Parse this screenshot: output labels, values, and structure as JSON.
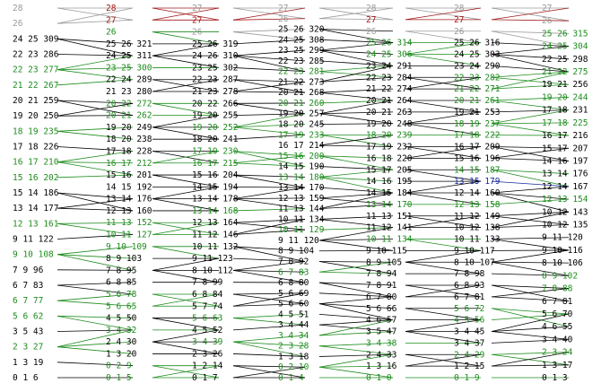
{
  "colors": {
    "black": "#000000",
    "green": "#1e8c1e",
    "red": "#a01818",
    "gray": "#9a9a9a",
    "blue": "#1a2a9a"
  },
  "columns": [
    {
      "labels": [
        {
          "t": "28",
          "c": "gray"
        },
        {
          "t": "26",
          "c": "gray"
        },
        {
          "t": "24 25 309",
          "c": "black"
        },
        {
          "t": "22 23 286",
          "c": "black"
        },
        {
          "t": "22 23 277",
          "c": "green"
        },
        {
          "t": "21 22 267",
          "c": "green"
        },
        {
          "t": "20 21 259",
          "c": "black"
        },
        {
          "t": "19 20 250",
          "c": "black"
        },
        {
          "t": "18 19 235",
          "c": "green"
        },
        {
          "t": "17 18 226",
          "c": "black"
        },
        {
          "t": "16 17 210",
          "c": "green"
        },
        {
          "t": "15 16 202",
          "c": "green"
        },
        {
          "t": "15 14 186",
          "c": "black"
        },
        {
          "t": "13 14 177",
          "c": "black"
        },
        {
          "t": "12 13 161",
          "c": "green"
        },
        {
          "t": "9 11 122",
          "c": "black"
        },
        {
          "t": "9 10 108",
          "c": "green"
        },
        {
          "t": "7 9 96",
          "c": "black"
        },
        {
          "t": "6 7 83",
          "c": "black"
        },
        {
          "t": "6 7 77",
          "c": "green"
        },
        {
          "t": "5 6 62",
          "c": "green"
        },
        {
          "t": "3 5 43",
          "c": "black"
        },
        {
          "t": "2 3 27",
          "c": "green"
        },
        {
          "t": "1 3 19",
          "c": "black"
        },
        {
          "t": "0 1 6",
          "c": "black"
        }
      ]
    },
    {
      "labels": [
        {
          "t": "28",
          "c": "red"
        },
        {
          "t": "27",
          "c": "red"
        },
        {
          "t": "26",
          "c": "green"
        },
        {
          "t": "25 26 321",
          "c": "black"
        },
        {
          "t": "24 25 311",
          "c": "black"
        },
        {
          "t": "23 25 300",
          "c": "green"
        },
        {
          "t": "22 24 289",
          "c": "black"
        },
        {
          "t": "21 23 280",
          "c": "black"
        },
        {
          "t": "20 22 272",
          "c": "green"
        },
        {
          "t": "20 21 262",
          "c": "green"
        },
        {
          "t": "19 20 249",
          "c": "black"
        },
        {
          "t": "18 20 238",
          "c": "black"
        },
        {
          "t": "17 18 228",
          "c": "black"
        },
        {
          "t": "16 17 212",
          "c": "green"
        },
        {
          "t": "15 16 201",
          "c": "black"
        },
        {
          "t": "14 15 192",
          "c": "black"
        },
        {
          "t": "13 14 176",
          "c": "black"
        },
        {
          "t": "12 13 160",
          "c": "black"
        },
        {
          "t": "11 13 152",
          "c": "green"
        },
        {
          "t": "10 11 127",
          "c": "green"
        },
        {
          "t": "9 10 109",
          "c": "green"
        },
        {
          "t": "8 9 103",
          "c": "black"
        },
        {
          "t": "7 8 95",
          "c": "black"
        },
        {
          "t": "6 8 85",
          "c": "black"
        },
        {
          "t": "5 6 78",
          "c": "green"
        },
        {
          "t": "5 6 65",
          "c": "green"
        },
        {
          "t": "4 5 50",
          "c": "black"
        },
        {
          "t": "3 4 32",
          "c": "green"
        },
        {
          "t": "2 4 30",
          "c": "black"
        },
        {
          "t": "1 3 20",
          "c": "black"
        },
        {
          "t": "0 2 9",
          "c": "green"
        },
        {
          "t": "0 1 5",
          "c": "green"
        }
      ]
    },
    {
      "labels": [
        {
          "t": "27",
          "c": "gray"
        },
        {
          "t": "27",
          "c": "red"
        },
        {
          "t": "26",
          "c": "gray"
        },
        {
          "t": "25 26 319",
          "c": "black"
        },
        {
          "t": "24 26 310",
          "c": "black"
        },
        {
          "t": "23 25 302",
          "c": "black"
        },
        {
          "t": "22 23 287",
          "c": "black"
        },
        {
          "t": "21 23 278",
          "c": "black"
        },
        {
          "t": "20 22 266",
          "c": "black"
        },
        {
          "t": "19 20 255",
          "c": "black"
        },
        {
          "t": "19 20 252",
          "c": "green"
        },
        {
          "t": "18 20 241",
          "c": "black"
        },
        {
          "t": "17 19 230",
          "c": "green"
        },
        {
          "t": "16 17 215",
          "c": "green"
        },
        {
          "t": "15 16 204",
          "c": "black"
        },
        {
          "t": "14 15 194",
          "c": "black"
        },
        {
          "t": "13 14 178",
          "c": "black"
        },
        {
          "t": "13 14 168",
          "c": "green"
        },
        {
          "t": "12 13 164",
          "c": "black"
        },
        {
          "t": "11 12 146",
          "c": "black"
        },
        {
          "t": "10 11 132",
          "c": "black"
        },
        {
          "t": "9 11 123",
          "c": "black"
        },
        {
          "t": "8 10 112",
          "c": "black"
        },
        {
          "t": "7 8 99",
          "c": "black"
        },
        {
          "t": "6 8 84",
          "c": "black"
        },
        {
          "t": "5 7 74",
          "c": "black"
        },
        {
          "t": "5 6 63",
          "c": "green"
        },
        {
          "t": "4 5 52",
          "c": "black"
        },
        {
          "t": "3 4 39",
          "c": "green"
        },
        {
          "t": "2 3 26",
          "c": "black"
        },
        {
          "t": "1 2 14",
          "c": "black"
        },
        {
          "t": "0 1 7",
          "c": "black"
        }
      ]
    },
    {
      "labels": [
        {
          "t": "27",
          "c": "gray"
        },
        {
          "t": "26",
          "c": "gray"
        },
        {
          "t": "25 26 320",
          "c": "black"
        },
        {
          "t": "24 25 308",
          "c": "black"
        },
        {
          "t": "23 25 299",
          "c": "black"
        },
        {
          "t": "22 23 285",
          "c": "black"
        },
        {
          "t": "22 23 281",
          "c": "green"
        },
        {
          "t": "21 22 273",
          "c": "black"
        },
        {
          "t": "20 21 268",
          "c": "black"
        },
        {
          "t": "20 21 260",
          "c": "green"
        },
        {
          "t": "19 20 257",
          "c": "black"
        },
        {
          "t": "18 20 245",
          "c": "black"
        },
        {
          "t": "17 19 233",
          "c": "green"
        },
        {
          "t": "16 17 214",
          "c": "black"
        },
        {
          "t": "15 16 200",
          "c": "green"
        },
        {
          "t": "14 15 190",
          "c": "black"
        },
        {
          "t": "13 14 180",
          "c": "green"
        },
        {
          "t": "13 14 170",
          "c": "black"
        },
        {
          "t": "12 13 159",
          "c": "black"
        },
        {
          "t": "11 13 144",
          "c": "black"
        },
        {
          "t": "10 11 134",
          "c": "black"
        },
        {
          "t": "10 11 129",
          "c": "green"
        },
        {
          "t": "9 11 120",
          "c": "black"
        },
        {
          "t": "8 9 104",
          "c": "black"
        },
        {
          "t": "7 8 92",
          "c": "black"
        },
        {
          "t": "6 7 83",
          "c": "green"
        },
        {
          "t": "6 8 80",
          "c": "black"
        },
        {
          "t": "5 6 69",
          "c": "black"
        },
        {
          "t": "5 6 60",
          "c": "black"
        },
        {
          "t": "4 5 51",
          "c": "black"
        },
        {
          "t": "3 4 44",
          "c": "black"
        },
        {
          "t": "3 4 34",
          "c": "green"
        },
        {
          "t": "2 3 28",
          "c": "green"
        },
        {
          "t": "1 3 18",
          "c": "black"
        },
        {
          "t": "0 2 10",
          "c": "green"
        },
        {
          "t": "0 1 4",
          "c": "green"
        }
      ]
    },
    {
      "labels": [
        {
          "t": "28",
          "c": "gray"
        },
        {
          "t": "27",
          "c": "red"
        },
        {
          "t": "26",
          "c": "gray"
        },
        {
          "t": "25 26 314",
          "c": "green"
        },
        {
          "t": "24 25 306",
          "c": "green"
        },
        {
          "t": "23 24 291",
          "c": "black"
        },
        {
          "t": "22 23 284",
          "c": "black"
        },
        {
          "t": "21 22 274",
          "c": "black"
        },
        {
          "t": "20 21 264",
          "c": "black"
        },
        {
          "t": "20 21 263",
          "c": "black"
        },
        {
          "t": "19 20 248",
          "c": "black"
        },
        {
          "t": "18 20 239",
          "c": "green"
        },
        {
          "t": "17 19 232",
          "c": "black"
        },
        {
          "t": "16 18 220",
          "c": "black"
        },
        {
          "t": "15 17 205",
          "c": "black"
        },
        {
          "t": "14 16 195",
          "c": "black"
        },
        {
          "t": "14 15 184",
          "c": "black"
        },
        {
          "t": "13 14 170",
          "c": "green"
        },
        {
          "t": "11 13 151",
          "c": "black"
        },
        {
          "t": "11 12 141",
          "c": "black"
        },
        {
          "t": "10 11 134",
          "c": "green"
        },
        {
          "t": "9 10 115",
          "c": "black"
        },
        {
          "t": "8 9 105",
          "c": "black"
        },
        {
          "t": "7 8 94",
          "c": "black"
        },
        {
          "t": "7 8 91",
          "c": "black"
        },
        {
          "t": "6 7 80",
          "c": "black"
        },
        {
          "t": "5 6 66",
          "c": "black"
        },
        {
          "t": "4 6 57",
          "c": "black"
        },
        {
          "t": "3 5 47",
          "c": "black"
        },
        {
          "t": "3 4 38",
          "c": "green"
        },
        {
          "t": "2 4 33",
          "c": "black"
        },
        {
          "t": "1 3 16",
          "c": "black"
        },
        {
          "t": "0 1 0",
          "c": "green"
        }
      ]
    },
    {
      "labels": [
        {
          "t": "28",
          "c": "gray"
        },
        {
          "t": "27",
          "c": "red"
        },
        {
          "t": "26",
          "c": "gray"
        },
        {
          "t": "25 26 316",
          "c": "black"
        },
        {
          "t": "24 25 303",
          "c": "black"
        },
        {
          "t": "23 24 290",
          "c": "black"
        },
        {
          "t": "22 23 282",
          "c": "green"
        },
        {
          "t": "21 22 271",
          "c": "green"
        },
        {
          "t": "20 21 261",
          "c": "green"
        },
        {
          "t": "19 21 253",
          "c": "black"
        },
        {
          "t": "18 19 237",
          "c": "green"
        },
        {
          "t": "17 18 222",
          "c": "green"
        },
        {
          "t": "16 17 209",
          "c": "black"
        },
        {
          "t": "15 16 196",
          "c": "black"
        },
        {
          "t": "14 15 187",
          "c": "green"
        },
        {
          "t": "13 15 179",
          "c": "blue"
        },
        {
          "t": "12 14 160",
          "c": "black"
        },
        {
          "t": "12 13 158",
          "c": "green"
        },
        {
          "t": "11 12 149",
          "c": "black"
        },
        {
          "t": "10 12 138",
          "c": "black"
        },
        {
          "t": "10 11 133",
          "c": "black"
        },
        {
          "t": "9 10 117",
          "c": "black"
        },
        {
          "t": "8 10 107",
          "c": "black"
        },
        {
          "t": "7 8 98",
          "c": "black"
        },
        {
          "t": "6 8 93",
          "c": "black"
        },
        {
          "t": "6 7 81",
          "c": "black"
        },
        {
          "t": "5 6 72",
          "c": "green"
        },
        {
          "t": "4 5 56",
          "c": "green"
        },
        {
          "t": "3 4 45",
          "c": "black"
        },
        {
          "t": "3 4 37",
          "c": "black"
        },
        {
          "t": "2 4 29",
          "c": "green"
        },
        {
          "t": "1 2 15",
          "c": "black"
        },
        {
          "t": "0 1 9",
          "c": "green"
        }
      ]
    },
    {
      "labels": [
        {
          "t": "27",
          "c": "gray"
        },
        {
          "t": "26",
          "c": "gray"
        },
        {
          "t": "25 26 315",
          "c": "green"
        },
        {
          "t": "24 25 304",
          "c": "green"
        },
        {
          "t": "22 25 298",
          "c": "black"
        },
        {
          "t": "21 22 275",
          "c": "green"
        },
        {
          "t": "19 21 256",
          "c": "black"
        },
        {
          "t": "19 20 244",
          "c": "green"
        },
        {
          "t": "17 18 231",
          "c": "black"
        },
        {
          "t": "17 18 225",
          "c": "green"
        },
        {
          "t": "16 17 216",
          "c": "black"
        },
        {
          "t": "15 17 207",
          "c": "black"
        },
        {
          "t": "14 16 197",
          "c": "black"
        },
        {
          "t": "13 14 176",
          "c": "black"
        },
        {
          "t": "12 14 167",
          "c": "black"
        },
        {
          "t": "12 13 154",
          "c": "green"
        },
        {
          "t": "10 12 143",
          "c": "black"
        },
        {
          "t": "10 12 135",
          "c": "black"
        },
        {
          "t": "9 11 120",
          "c": "black"
        },
        {
          "t": "9 10 116",
          "c": "black"
        },
        {
          "t": "8 10 106",
          "c": "black"
        },
        {
          "t": "8 9 102",
          "c": "green"
        },
        {
          "t": "7 8 88",
          "c": "green"
        },
        {
          "t": "6 7 81",
          "c": "black"
        },
        {
          "t": "5 6 70",
          "c": "black"
        },
        {
          "t": "4 6 55",
          "c": "black"
        },
        {
          "t": "3 4 40",
          "c": "black"
        },
        {
          "t": "2 3 24",
          "c": "green"
        },
        {
          "t": "1 3 17",
          "c": "black"
        },
        {
          "t": "0 1 3",
          "c": "black"
        }
      ]
    }
  ]
}
